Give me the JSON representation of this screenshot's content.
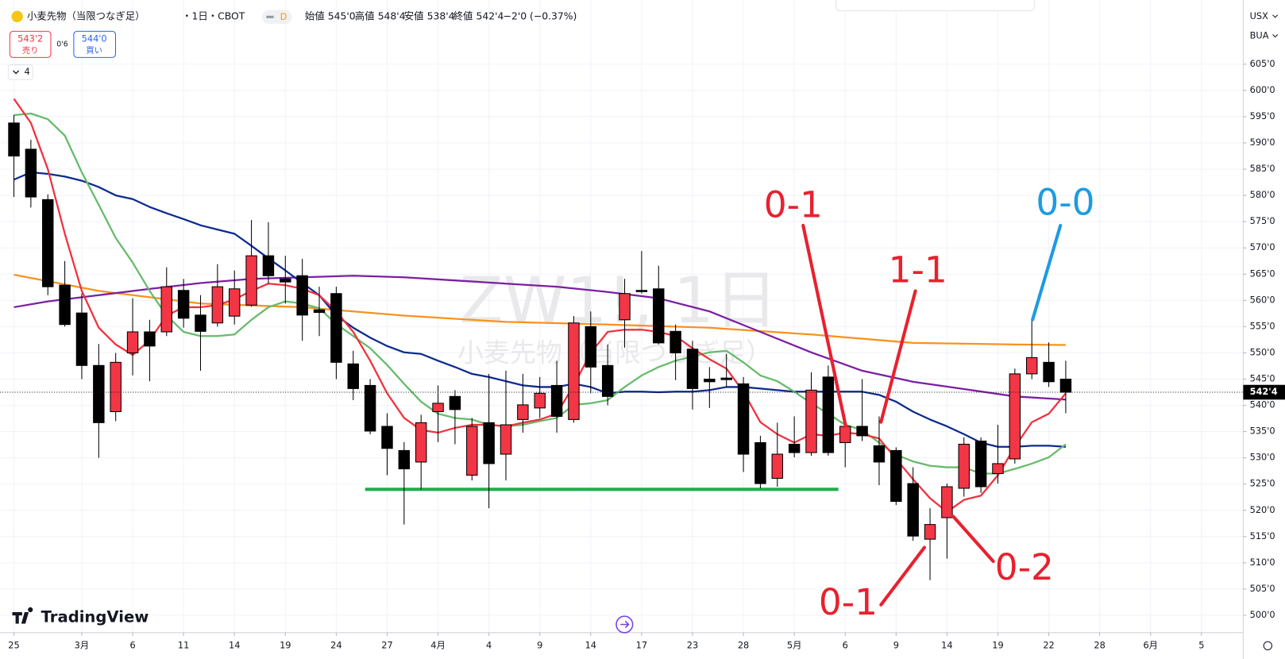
{
  "header": {
    "symbol": "小麦先物（当限つなぎ足）",
    "interval": "・1日・CBOT",
    "badge": "D",
    "ohlc": [
      {
        "label": "始値",
        "value": "545'0"
      },
      {
        "label": "高値",
        "value": "548'4"
      },
      {
        "label": "安値",
        "value": "538'4"
      },
      {
        "label": "終値",
        "value": "542'4"
      }
    ],
    "change": "−2'0 (−0.37%)"
  },
  "trade": {
    "sell_price": "543'2",
    "sell": "売り",
    "spread": "0'6",
    "buy_price": "544'0",
    "buy": "買い"
  },
  "indicators_count": "4",
  "watermark": {
    "ticker": "ZW1!, 1日",
    "name": "小麦先物（当限つなぎ足）"
  },
  "axis_units": [
    "USX",
    "BUA"
  ],
  "brand": "TradingView",
  "chart_data": {
    "type": "candlestick",
    "up_color": "#f23645",
    "down_color": "#000000",
    "open": [
      593.8,
      588.8,
      579.2,
      562.9,
      557.6,
      547.6,
      538.8,
      550,
      554,
      554,
      561.9,
      557.2,
      555.7,
      557,
      559.1,
      568.5,
      564.1,
      564.7,
      558.2,
      561.3,
      547.9,
      543.8,
      536,
      531.4,
      529.2,
      538.8,
      541.7,
      526.7,
      536.7,
      530.7,
      537.3,
      539.5,
      543.8,
      537.3,
      555,
      547.6,
      556.3,
      561.9,
      562.2,
      554.1,
      550.7,
      545,
      545.2,
      544.1,
      532.9,
      526.1,
      532.6,
      531,
      545.4,
      532.9,
      536,
      532.3,
      531.4,
      525.1,
      514.5,
      518.6,
      524.2,
      533.2,
      527,
      529.8,
      546,
      548.2,
      545
    ],
    "high": [
      595.3,
      590.6,
      580.2,
      567.5,
      561.3,
      551.7,
      550,
      560.4,
      556.3,
      566.3,
      564.1,
      561,
      566.9,
      565.7,
      575.3,
      574.9,
      568.5,
      567.9,
      562.6,
      562.6,
      550.4,
      545,
      538.5,
      533,
      538.2,
      543.8,
      542.9,
      537.6,
      546,
      546.6,
      546,
      545.4,
      548.5,
      557,
      557.9,
      551.6,
      564.1,
      569.4,
      566.6,
      555.4,
      552.3,
      547.3,
      549.8,
      545.4,
      534.2,
      536.7,
      537.9,
      546.3,
      547.6,
      537.3,
      545,
      537.9,
      532,
      528.2,
      520.4,
      525.1,
      533.9,
      533.9,
      536.3,
      547,
      556.6,
      552,
      548.5
    ],
    "low": [
      579.7,
      577.7,
      561,
      555,
      545,
      530,
      537,
      545.7,
      544.6,
      553.2,
      554.8,
      546.6,
      555,
      555.4,
      558.8,
      563.2,
      559.4,
      552.3,
      553.2,
      545,
      541,
      534.5,
      526.7,
      517.3,
      524,
      533,
      532.6,
      525.7,
      520.4,
      525.7,
      534.8,
      537.6,
      534.8,
      536.7,
      542.3,
      540,
      551,
      561.3,
      551.6,
      544.8,
      539.2,
      539.5,
      543.5,
      527.3,
      524.2,
      524.5,
      530.1,
      530.4,
      530.4,
      528.2,
      533.2,
      524.8,
      521,
      514.2,
      506.7,
      510.8,
      522.6,
      523.3,
      525.1,
      528.9,
      545,
      543.5,
      538.5
    ],
    "close": [
      587.5,
      579.7,
      562.6,
      555.4,
      547.6,
      536.7,
      548.2,
      554,
      551.3,
      562.6,
      556.6,
      554.1,
      562.6,
      562.2,
      568.5,
      564.7,
      563.5,
      557.2,
      557.7,
      548.2,
      543.2,
      535.1,
      531.8,
      527.9,
      536.7,
      540.4,
      539.2,
      536,
      528.9,
      536.3,
      540.1,
      542.3,
      537.9,
      555.7,
      547.3,
      541.7,
      561.3,
      561.7,
      551.9,
      550,
      543.2,
      544.5,
      544.9,
      530.7,
      525.1,
      530.7,
      531,
      542.9,
      531,
      536,
      534.2,
      529.2,
      521.7,
      515.1,
      517.3,
      524.5,
      532.6,
      524.5,
      528.9,
      546,
      549.1,
      544.5,
      542.5
    ],
    "xlim": [
      -0.82,
      72.46
    ],
    "xticks": [
      {
        "value": 0,
        "label": "25"
      },
      {
        "value": 4,
        "label": "3月"
      },
      {
        "value": 7,
        "label": "6"
      },
      {
        "value": 10,
        "label": "11"
      },
      {
        "value": 13,
        "label": "14"
      },
      {
        "value": 16,
        "label": "19"
      },
      {
        "value": 19,
        "label": "24"
      },
      {
        "value": 22,
        "label": "27"
      },
      {
        "value": 25,
        "label": "4月"
      },
      {
        "value": 28,
        "label": "4"
      },
      {
        "value": 31,
        "label": "9"
      },
      {
        "value": 34,
        "label": "14"
      },
      {
        "value": 37,
        "label": "17"
      },
      {
        "value": 40,
        "label": "23"
      },
      {
        "value": 43,
        "label": "28"
      },
      {
        "value": 46,
        "label": "5月"
      },
      {
        "value": 49,
        "label": "6"
      },
      {
        "value": 52,
        "label": "9"
      },
      {
        "value": 55,
        "label": "14"
      },
      {
        "value": 58,
        "label": "19"
      },
      {
        "value": 61,
        "label": "22"
      },
      {
        "value": 64,
        "label": "28"
      },
      {
        "value": 67,
        "label": "6月"
      },
      {
        "value": 70,
        "label": "5"
      }
    ],
    "ylim": [
      496.7,
      617.2
    ],
    "yticks": [
      {
        "value": 500,
        "label": "500'0"
      },
      {
        "value": 505,
        "label": "505'0"
      },
      {
        "value": 510,
        "label": "510'0"
      },
      {
        "value": 515,
        "label": "515'0"
      },
      {
        "value": 520,
        "label": "520'0"
      },
      {
        "value": 525,
        "label": "525'0"
      },
      {
        "value": 530,
        "label": "530'0"
      },
      {
        "value": 535,
        "label": "535'0"
      },
      {
        "value": 540,
        "label": "540'0"
      },
      {
        "value": 545,
        "label": "545'0"
      },
      {
        "value": 550,
        "label": "550'0"
      },
      {
        "value": 555,
        "label": "555'0"
      },
      {
        "value": 560,
        "label": "560'0"
      },
      {
        "value": 565,
        "label": "565'0"
      },
      {
        "value": 570,
        "label": "570'0"
      },
      {
        "value": 575,
        "label": "575'0"
      },
      {
        "value": 580,
        "label": "580'0"
      },
      {
        "value": 585,
        "label": "585'0"
      },
      {
        "value": 590,
        "label": "590'0"
      },
      {
        "value": 595,
        "label": "595'0"
      },
      {
        "value": 600,
        "label": "600'0"
      },
      {
        "value": 605,
        "label": "605'0"
      }
    ],
    "grid": true,
    "last_price": {
      "value": 542.5,
      "label": "542'4"
    },
    "moving_averages": [
      {
        "color": "#f7931e",
        "x": [
          0,
          5,
          11,
          17,
          23,
          29,
          35,
          41,
          47,
          53,
          59,
          62
        ],
        "values": [
          564.9,
          561.8,
          559.4,
          558.7,
          557.1,
          555.9,
          555.4,
          554.8,
          553.5,
          551.9,
          551.6,
          551.5
        ]
      },
      {
        "color": "#7b1fa2",
        "x": [
          0,
          2,
          5,
          8,
          11,
          14,
          17,
          20,
          23,
          26,
          29,
          32,
          35,
          38,
          41,
          44,
          47,
          50,
          53,
          56,
          59,
          62
        ],
        "values": [
          558.7,
          559.8,
          561,
          562.2,
          563.3,
          564.1,
          564.4,
          564.7,
          564.4,
          563.8,
          563.2,
          562.6,
          561.6,
          560.4,
          557.9,
          554,
          550.1,
          546.6,
          544.5,
          543.1,
          541.7,
          541.1
        ]
      },
      {
        "color": "#0d2b8c",
        "x": [
          0,
          1,
          2,
          3,
          4,
          5,
          6,
          7,
          8,
          9,
          10,
          11,
          12,
          13,
          14,
          15,
          16,
          17,
          18,
          19,
          20,
          21,
          22,
          23,
          24,
          25,
          26,
          27,
          28,
          29,
          30,
          31,
          32,
          33,
          34,
          35,
          36,
          37,
          38,
          39,
          40,
          41,
          42,
          43,
          44,
          45,
          46,
          47,
          48,
          49,
          50,
          51,
          52,
          53,
          54,
          55,
          56,
          57,
          58,
          59,
          60,
          61,
          62
        ],
        "values": [
          583,
          584.4,
          584.1,
          583.6,
          582.8,
          581.6,
          580,
          579.3,
          577.8,
          576.6,
          575.5,
          574.3,
          573.5,
          572.7,
          570.4,
          568,
          565.7,
          563.3,
          561,
          557.1,
          554.8,
          552.9,
          551.3,
          550.1,
          549.8,
          548.5,
          547.3,
          546,
          545.4,
          544.6,
          543.8,
          543.5,
          543.5,
          544.1,
          543.5,
          542.3,
          542.6,
          542.6,
          542.5,
          542.6,
          542.6,
          542.9,
          543.5,
          543.5,
          543.2,
          542.9,
          542.6,
          542.6,
          542.6,
          542.6,
          542.6,
          542,
          540.7,
          538.8,
          537.3,
          536,
          534.5,
          532.9,
          532.1,
          532.1,
          532.3,
          532.3,
          532.1
        ]
      },
      {
        "color": "#66bb6a",
        "x": [
          0,
          1,
          2,
          3,
          4,
          5,
          6,
          7,
          8,
          9,
          10,
          11,
          12,
          13,
          14,
          15,
          16,
          17,
          18,
          19,
          20,
          21,
          22,
          23,
          24,
          25,
          26,
          27,
          28,
          29,
          30,
          31,
          32,
          33,
          34,
          35,
          36,
          37,
          38,
          39,
          40,
          41,
          42,
          43,
          44,
          45,
          46,
          47,
          48,
          49,
          50,
          51,
          52,
          53,
          54,
          55,
          56,
          57,
          58,
          59,
          60,
          61,
          62
        ],
        "values": [
          595.3,
          595.6,
          594.5,
          591.4,
          584.4,
          578.2,
          571.9,
          567.2,
          561.8,
          557.1,
          554,
          553.2,
          553.2,
          553.5,
          556.3,
          558.7,
          559.8,
          559.4,
          558.5,
          555.5,
          553.2,
          550.9,
          547.7,
          544.1,
          540.7,
          538.4,
          537.6,
          537.3,
          536.3,
          536,
          536.3,
          537,
          537.6,
          540.1,
          540.4,
          541,
          543.5,
          545.7,
          547.3,
          548.5,
          549.3,
          550.1,
          550.4,
          548.2,
          545.7,
          544.6,
          542.6,
          540.4,
          538.4,
          536.3,
          535.3,
          532.9,
          530.6,
          529.3,
          528.5,
          528.2,
          528.2,
          527,
          527,
          527.9,
          528.9,
          530.1,
          532.6
        ]
      },
      {
        "color": "#f0323f",
        "x": [
          0,
          1,
          2,
          3,
          4,
          5,
          6,
          7,
          8,
          9,
          10,
          11,
          12,
          13,
          14,
          15,
          16,
          17,
          18,
          19,
          20,
          21,
          22,
          23,
          24,
          25,
          26,
          27,
          28,
          29,
          30,
          31,
          32,
          33,
          34,
          35,
          36,
          37,
          38,
          39,
          40,
          41,
          42,
          43,
          44,
          45,
          46,
          47,
          48,
          49,
          50,
          51,
          52,
          53,
          54,
          55,
          56,
          57,
          58,
          59,
          60,
          61,
          62
        ],
        "values": [
          598.4,
          593.8,
          585,
          572.7,
          561.8,
          554.8,
          551.6,
          549.6,
          552.4,
          557.1,
          558.7,
          558.7,
          559.1,
          560.2,
          561.8,
          563.2,
          562.9,
          562.2,
          561,
          557.9,
          554,
          548.5,
          542.3,
          537.6,
          535.3,
          534.8,
          535.7,
          536.3,
          536.3,
          536,
          536.7,
          537.3,
          538.4,
          543.8,
          550,
          554,
          554.4,
          554.4,
          554,
          553.2,
          550.9,
          548.8,
          547,
          542.6,
          536.8,
          534.5,
          532.9,
          534.5,
          534.2,
          534.8,
          534.5,
          533.7,
          529.8,
          525.9,
          522.3,
          519.7,
          522,
          522.8,
          526.7,
          532.1,
          536.8,
          538.4,
          542.3
        ]
      }
    ],
    "support_line": {
      "value": 524,
      "x": [
        20.7,
        48.6
      ],
      "color": "#1fae4b"
    },
    "annotations": [
      {
        "text": "0-1",
        "color": "#e8212f"
      },
      {
        "text": "1-1",
        "color": "#e8212f"
      },
      {
        "text": "0-0",
        "color": "#1e9be0"
      },
      {
        "text": "0-2",
        "color": "#e8212f"
      },
      {
        "text": "0-1",
        "color": "#e8212f"
      }
    ]
  }
}
